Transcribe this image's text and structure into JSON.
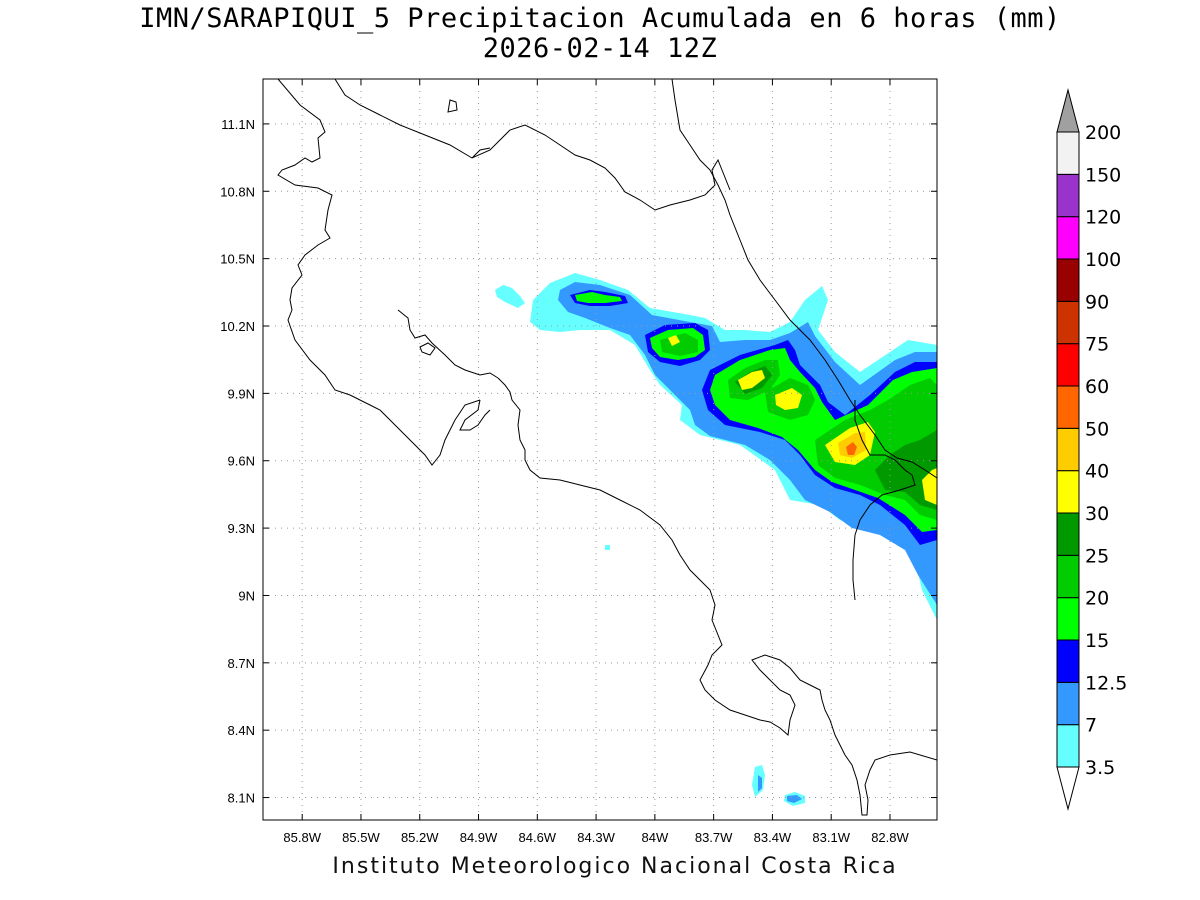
{
  "title": {
    "line1": "IMN/SARAPIQUI_5 Precipitacion Acumulada en 6 horas (mm)",
    "line2": "2026-02-14 12Z"
  },
  "footer": "Instituto Meteorologico Nacional Costa Rica",
  "map": {
    "lon_range": [
      -86.0,
      -82.56
    ],
    "lat_range": [
      8.0,
      11.3
    ],
    "lon_ticks": [
      "85.8W",
      "85.5W",
      "85.2W",
      "84.9W",
      "84.6W",
      "84.3W",
      "84W",
      "83.7W",
      "83.4W",
      "83.1W",
      "82.8W"
    ],
    "lon_tick_values": [
      -85.8,
      -85.5,
      -85.2,
      -84.9,
      -84.6,
      -84.3,
      -84.0,
      -83.7,
      -83.4,
      -83.1,
      -82.8
    ],
    "lat_ticks": [
      "11.1N",
      "10.8N",
      "10.5N",
      "10.2N",
      "9.9N",
      "9.6N",
      "9.3N",
      "9N",
      "8.7N",
      "8.4N",
      "8.1N"
    ],
    "lat_tick_values": [
      11.1,
      10.8,
      10.5,
      10.2,
      9.9,
      9.6,
      9.3,
      9.0,
      8.7,
      8.4,
      8.1
    ],
    "grid": "dotted",
    "coastline_color": "#000000"
  },
  "legend": {
    "placement": "right",
    "units": "mm",
    "labels": [
      "3.5",
      "7",
      "12.5",
      "15",
      "20",
      "25",
      "30",
      "40",
      "50",
      "60",
      "75",
      "90",
      "100",
      "120",
      "150",
      "200"
    ],
    "colors": [
      "#66ffff",
      "#3399ff",
      "#0000ff",
      "#00ff00",
      "#00cc00",
      "#009900",
      "#ffff00",
      "#ffcc00",
      "#ff6600",
      "#ff0000",
      "#cc3300",
      "#990000",
      "#ff00ff",
      "#9933cc",
      "#f2f2f2"
    ],
    "under_color": "#ffffff",
    "over_color": "#a0a0a0"
  }
}
